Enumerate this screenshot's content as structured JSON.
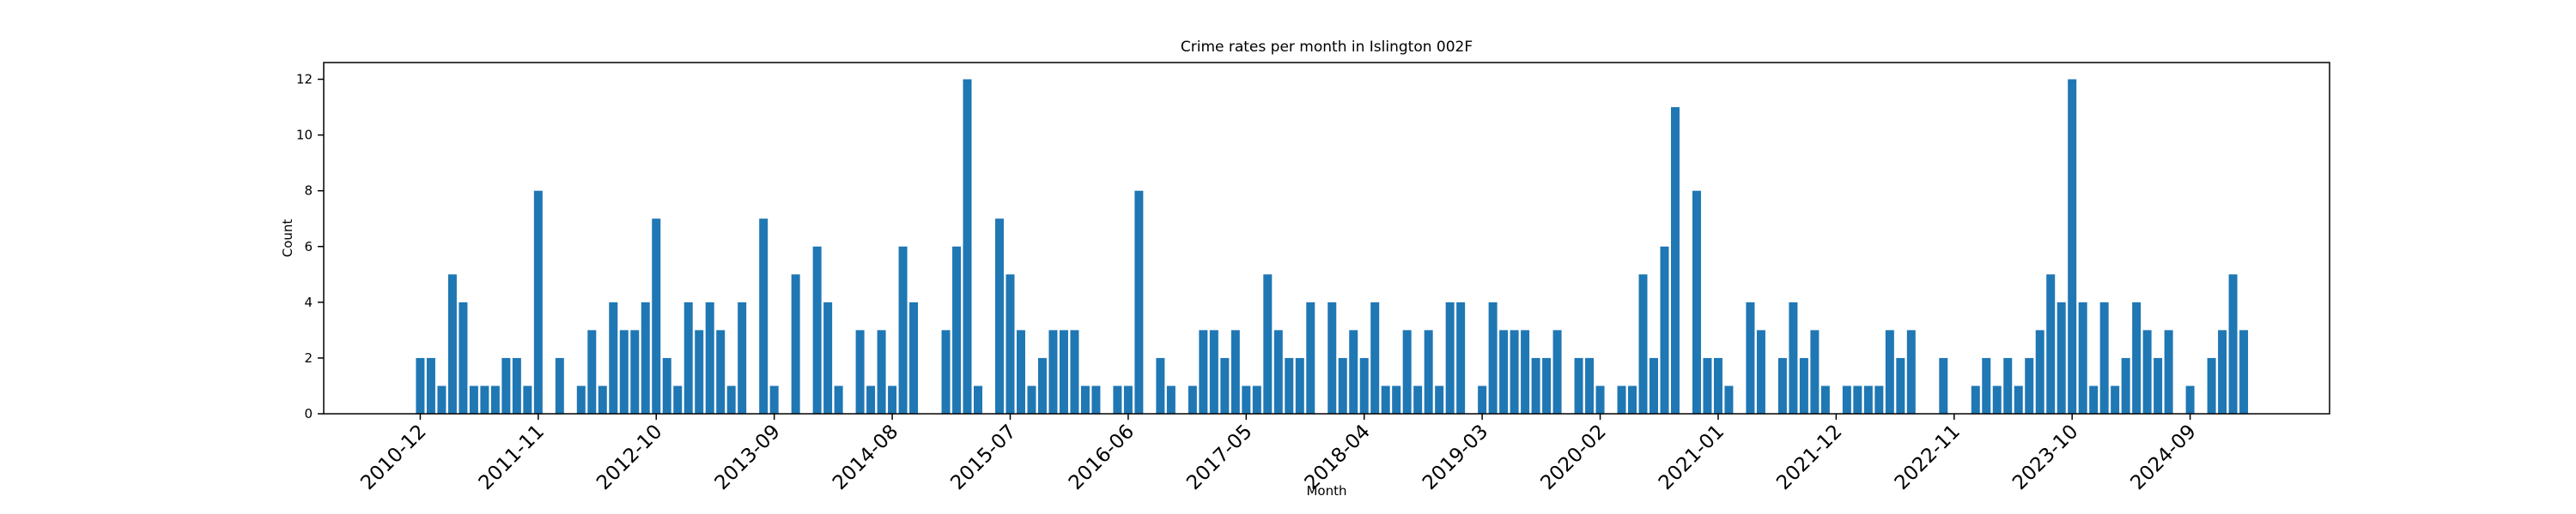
{
  "chart_data": {
    "type": "bar",
    "title": "Crime rates per month in Islington 002F",
    "x_label": "Month",
    "y_label": "Count",
    "color": "#1f77b4",
    "x": [
      "2010-12",
      "2011-01",
      "2011-02",
      "2011-03",
      "2011-04",
      "2011-05",
      "2011-06",
      "2011-07",
      "2011-08",
      "2011-09",
      "2011-10",
      "2011-11",
      "2011-12",
      "2012-01",
      "2012-02",
      "2012-03",
      "2012-04",
      "2012-05",
      "2012-06",
      "2012-07",
      "2012-08",
      "2012-09",
      "2012-10",
      "2012-11",
      "2012-12",
      "2013-01",
      "2013-02",
      "2013-03",
      "2013-04",
      "2013-05",
      "2013-06",
      "2013-07",
      "2013-08",
      "2013-09",
      "2013-10",
      "2013-11",
      "2013-12",
      "2014-01",
      "2014-02",
      "2014-03",
      "2014-04",
      "2014-05",
      "2014-06",
      "2014-07",
      "2014-08",
      "2014-09",
      "2014-10",
      "2014-11",
      "2014-12",
      "2015-01",
      "2015-02",
      "2015-03",
      "2015-04",
      "2015-05",
      "2015-06",
      "2015-07",
      "2015-08",
      "2015-09",
      "2015-10",
      "2015-11",
      "2015-12",
      "2016-01",
      "2016-02",
      "2016-03",
      "2016-04",
      "2016-05",
      "2016-06",
      "2016-07",
      "2016-08",
      "2016-09",
      "2016-10",
      "2016-11",
      "2016-12",
      "2017-01",
      "2017-02",
      "2017-03",
      "2017-04",
      "2017-05",
      "2017-06",
      "2017-07",
      "2017-08",
      "2017-09",
      "2017-10",
      "2017-11",
      "2017-12",
      "2018-01",
      "2018-02",
      "2018-03",
      "2018-04",
      "2018-05",
      "2018-06",
      "2018-07",
      "2018-08",
      "2018-09",
      "2018-10",
      "2018-11",
      "2018-12",
      "2019-01",
      "2019-02",
      "2019-03",
      "2019-04",
      "2019-05",
      "2019-06",
      "2019-07",
      "2019-08",
      "2019-09",
      "2019-10",
      "2019-11",
      "2019-12",
      "2020-01",
      "2020-02",
      "2020-03",
      "2020-04",
      "2020-05",
      "2020-06",
      "2020-07",
      "2020-08",
      "2020-09",
      "2020-10",
      "2020-11",
      "2020-12",
      "2021-01",
      "2021-02",
      "2021-03",
      "2021-04",
      "2021-05",
      "2021-06",
      "2021-07",
      "2021-08",
      "2021-09",
      "2021-10",
      "2021-11",
      "2021-12",
      "2022-01",
      "2022-02",
      "2022-03",
      "2022-04",
      "2022-05",
      "2022-06",
      "2022-07",
      "2022-08",
      "2022-09",
      "2022-10",
      "2022-11",
      "2022-12",
      "2023-01",
      "2023-02",
      "2023-03",
      "2023-04",
      "2023-05",
      "2023-06",
      "2023-07",
      "2023-08",
      "2023-09",
      "2023-10",
      "2023-11",
      "2023-12",
      "2024-01",
      "2024-02",
      "2024-03",
      "2024-04",
      "2024-05",
      "2024-06",
      "2024-07",
      "2024-08",
      "2024-09",
      "2024-10",
      "2024-11",
      "2024-12",
      "2025-01",
      "2025-02"
    ],
    "values": [
      2,
      2,
      1,
      5,
      4,
      1,
      1,
      1,
      2,
      2,
      1,
      8,
      0,
      2,
      0,
      1,
      3,
      1,
      4,
      3,
      3,
      4,
      7,
      2,
      1,
      4,
      3,
      4,
      3,
      1,
      4,
      0,
      7,
      1,
      0,
      5,
      0,
      6,
      4,
      1,
      0,
      3,
      1,
      3,
      1,
      6,
      4,
      0,
      0,
      3,
      6,
      12,
      1,
      0,
      7,
      5,
      3,
      1,
      2,
      3,
      3,
      3,
      1,
      1,
      0,
      1,
      1,
      8,
      0,
      2,
      1,
      0,
      1,
      3,
      3,
      2,
      3,
      1,
      1,
      5,
      3,
      2,
      2,
      4,
      0,
      4,
      2,
      3,
      2,
      4,
      1,
      1,
      3,
      1,
      3,
      1,
      4,
      4,
      0,
      1,
      4,
      3,
      3,
      3,
      2,
      2,
      3,
      0,
      2,
      2,
      1,
      0,
      1,
      1,
      5,
      2,
      6,
      11,
      0,
      8,
      2,
      2,
      1,
      0,
      4,
      3,
      0,
      2,
      4,
      2,
      3,
      1,
      0,
      1,
      1,
      1,
      1,
      3,
      2,
      3,
      0,
      0,
      2,
      0,
      0,
      1,
      2,
      1,
      2,
      1,
      2,
      3,
      5,
      4,
      12,
      4,
      1,
      4,
      1,
      2,
      4,
      3,
      2,
      3,
      0,
      1,
      0,
      2,
      3,
      5,
      3
    ],
    "xlim": [
      "2010-03",
      "2025-10"
    ],
    "xticks": [
      "2010-12",
      "2011-11",
      "2012-10",
      "2013-09",
      "2014-08",
      "2015-07",
      "2016-06",
      "2017-05",
      "2018-04",
      "2019-03",
      "2020-02",
      "2021-01",
      "2021-12",
      "2022-11",
      "2023-10",
      "2024-09"
    ],
    "ylim": [
      0,
      12.6
    ],
    "yticks": [
      0,
      2,
      4,
      6,
      8,
      10,
      12
    ]
  }
}
